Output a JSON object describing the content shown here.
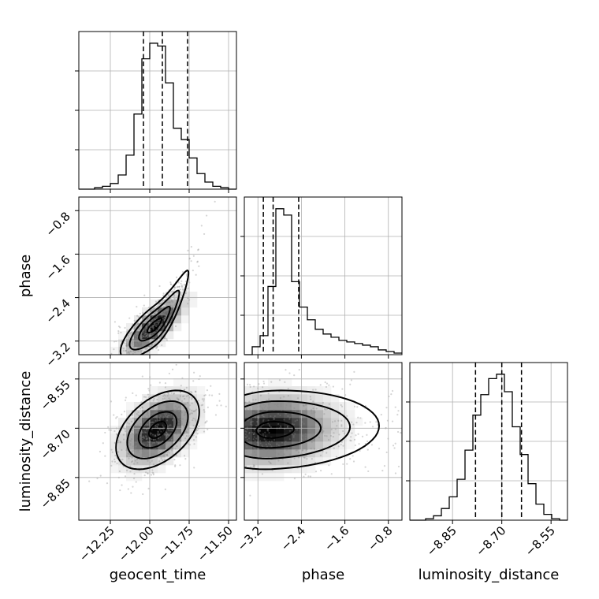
{
  "chart_data": {
    "type": "corner",
    "grid": true,
    "parameters": [
      "geocent_time",
      "phase",
      "luminosity_distance"
    ],
    "ranges": {
      "geocent_time": [
        -12.45,
        -11.45
      ],
      "phase": [
        -3.45,
        -0.55
      ],
      "luminosity_distance": [
        -8.98,
        -8.5
      ]
    },
    "ticks": {
      "geocent_time": [
        "−12.25",
        "−12.00",
        "−11.75",
        "−11.50"
      ],
      "phase": [
        "−3.2",
        "−2.4",
        "−1.6",
        "−0.8"
      ],
      "luminosity_distance": [
        "−8.85",
        "−8.70",
        "−8.55"
      ]
    },
    "tick_values": {
      "geocent_time": [
        -12.25,
        -12.0,
        -11.75,
        -11.5
      ],
      "phase": [
        -3.2,
        -2.4,
        -1.6,
        -0.8
      ],
      "luminosity_distance": [
        -8.85,
        -8.7,
        -8.55
      ]
    },
    "quantiles": {
      "geocent_time": [
        -12.04,
        -11.92,
        -11.76
      ],
      "phase": [
        -3.1,
        -2.92,
        -2.45
      ],
      "luminosity_distance": [
        -8.78,
        -8.7,
        -8.64
      ]
    },
    "histograms": {
      "geocent_time": {
        "range": [
          -12.45,
          -11.45
        ],
        "counts": [
          0,
          0,
          1,
          2,
          4,
          10,
          24,
          53,
          92,
          103,
          101,
          75,
          43,
          35,
          22,
          11,
          5,
          2,
          1,
          0
        ]
      },
      "phase": {
        "range": [
          -3.45,
          -0.55
        ],
        "counts": [
          0,
          5,
          12,
          43,
          92,
          88,
          46,
          30,
          22,
          16,
          13,
          11,
          9,
          8,
          7,
          6,
          5,
          3,
          2,
          1
        ]
      },
      "luminosity_distance": {
        "range": [
          -8.98,
          -8.5
        ],
        "counts": [
          0,
          0,
          1,
          3,
          8,
          16,
          28,
          48,
          72,
          86,
          97,
          100,
          88,
          64,
          45,
          25,
          11,
          4,
          1,
          0
        ]
      }
    },
    "pair_density": [
      {
        "x": "geocent_time",
        "y": "phase",
        "mean": [
          -11.97,
          -2.92
        ],
        "sd": [
          0.09,
          0.25
        ],
        "rho": 0.78
      },
      {
        "x": "geocent_time",
        "y": "luminosity_distance",
        "mean": [
          -11.95,
          -8.705
        ],
        "sd": [
          0.11,
          0.05
        ],
        "rho": 0.45
      },
      {
        "x": "phase",
        "y": "luminosity_distance",
        "mean": [
          -2.95,
          -8.705
        ],
        "sd": [
          0.55,
          0.05
        ],
        "rho": 0.1
      }
    ]
  }
}
